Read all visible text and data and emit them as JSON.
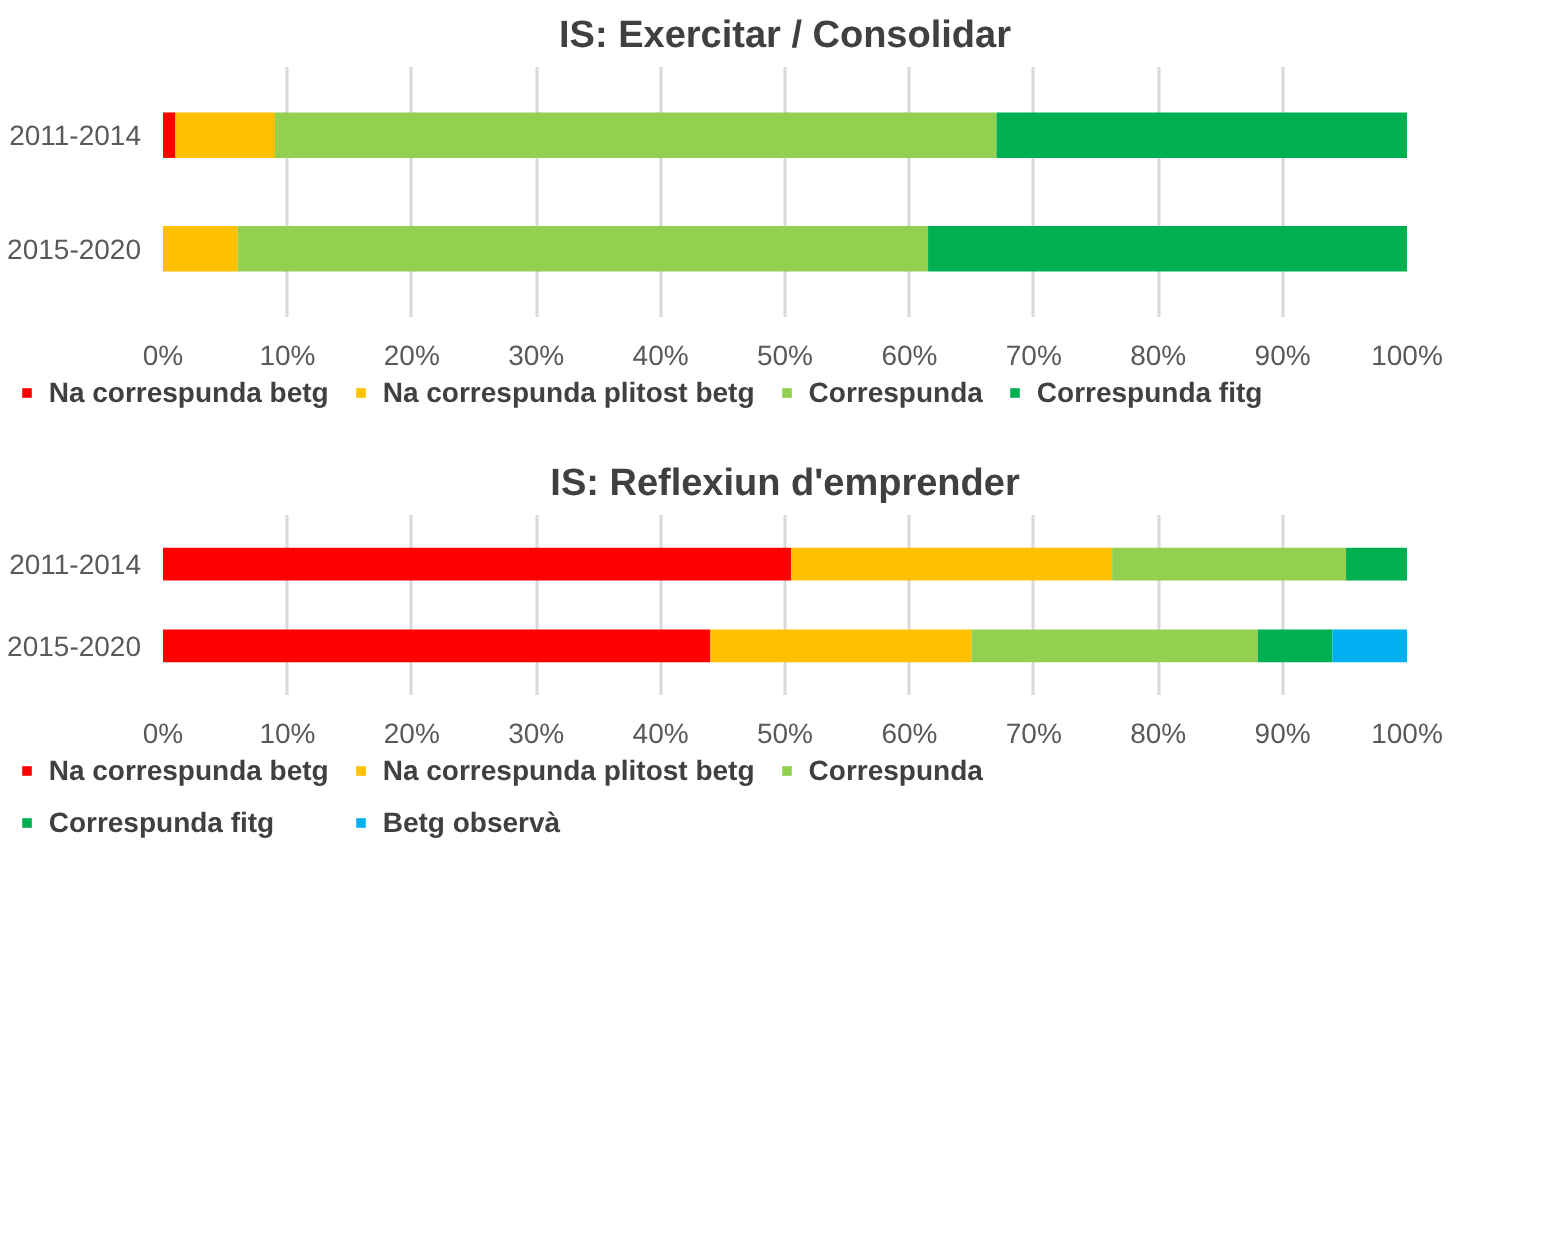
{
  "chart_data": [
    {
      "type": "bar",
      "title": "IS: Exercitar / Consolidar",
      "orientation": "horizontal",
      "stacked": true,
      "categories": [
        "2011-2014",
        "2015-2020"
      ],
      "series": [
        {
          "name": "Na correspunda betg",
          "color": "#ff0000",
          "values": [
            1,
            0
          ]
        },
        {
          "name": "Na correspunda plitost betg",
          "color": "#ffc000",
          "values": [
            8,
            6
          ]
        },
        {
          "name": "Correspunda",
          "color": "#92d050",
          "values": [
            58,
            55.5
          ]
        },
        {
          "name": "Correspunda fitg",
          "color": "#00b050",
          "values": [
            33,
            38.5
          ]
        }
      ],
      "xlim": [
        0,
        100
      ],
      "xticks": [
        {
          "value": 0,
          "label": "0%"
        },
        {
          "value": 10,
          "label": "10%"
        },
        {
          "value": 20,
          "label": "20%"
        },
        {
          "value": 30,
          "label": "30%"
        },
        {
          "value": 40,
          "label": "40%"
        },
        {
          "value": 50,
          "label": "50%"
        },
        {
          "value": 60,
          "label": "60%"
        },
        {
          "value": 70,
          "label": "70%"
        },
        {
          "value": 80,
          "label": "80%"
        },
        {
          "value": 90,
          "label": "90%"
        },
        {
          "value": 100,
          "label": "100%"
        }
      ],
      "grid": "x",
      "legend": "bottom"
    },
    {
      "type": "bar",
      "title": "IS: Reflexiun d'emprender",
      "orientation": "horizontal",
      "stacked": true,
      "categories": [
        "2011-2014",
        "2015-2020"
      ],
      "series": [
        {
          "name": "Na correspunda betg",
          "color": "#ff0000",
          "values": [
            50.5,
            44
          ]
        },
        {
          "name": "Na correspunda plitost betg",
          "color": "#ffc000",
          "values": [
            25.8,
            21
          ]
        },
        {
          "name": "Correspunda",
          "color": "#92d050",
          "values": [
            18.8,
            23
          ]
        },
        {
          "name": "Correspunda fitg",
          "color": "#00b050",
          "values": [
            4.9,
            6
          ]
        },
        {
          "name": "Betg observà",
          "color": "#00b0f0",
          "values": [
            0,
            6
          ]
        }
      ],
      "xlim": [
        0,
        100
      ],
      "xticks": [
        {
          "value": 0,
          "label": "0%"
        },
        {
          "value": 10,
          "label": "10%"
        },
        {
          "value": 20,
          "label": "20%"
        },
        {
          "value": 30,
          "label": "30%"
        },
        {
          "value": 40,
          "label": "40%"
        },
        {
          "value": 50,
          "label": "50%"
        },
        {
          "value": 60,
          "label": "60%"
        },
        {
          "value": 70,
          "label": "70%"
        },
        {
          "value": 80,
          "label": "80%"
        },
        {
          "value": 90,
          "label": "90%"
        },
        {
          "value": 100,
          "label": "100%"
        }
      ],
      "grid": "x",
      "legend": "bottom"
    }
  ]
}
